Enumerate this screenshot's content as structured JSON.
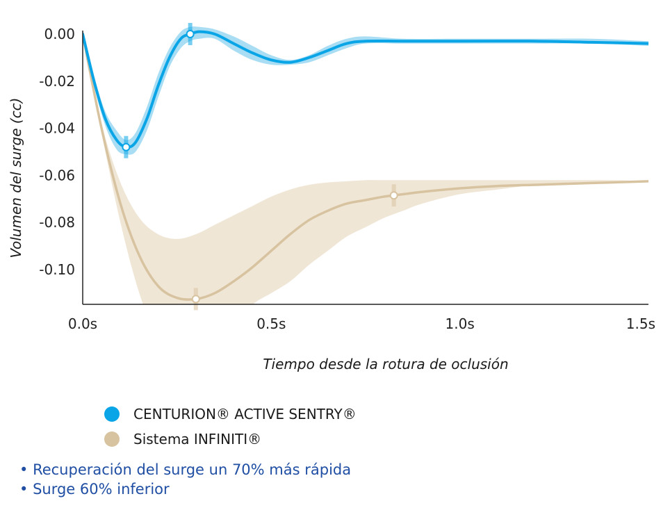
{
  "colors": {
    "centurion": "#0aa5e6",
    "centurion_band": "#a8ddf4",
    "infiniti": "#d8c3a0",
    "infiniti_band": "#f0e6d6",
    "axis": "#222222",
    "bullet_text": "#1f4ea3"
  },
  "chart_data": {
    "type": "line",
    "xlabel": "Tiempo desde la rotura de oclusión",
    "ylabel": "Volumen del surge (cc)",
    "xlim": [
      0,
      1.5
    ],
    "ylim": [
      -0.115,
      0.002
    ],
    "x_ticks": [
      "0.0s",
      "0.5s",
      "1.0s",
      "1.5s"
    ],
    "y_ticks": [
      "0.00",
      "-0.02",
      "-0.04",
      "-0.06",
      "-0.08",
      "-0.10"
    ],
    "series": [
      {
        "name": "CENTURION® ACTIVE SENTRY®",
        "x": [
          0,
          0.03,
          0.06,
          0.09,
          0.115,
          0.14,
          0.17,
          0.2,
          0.23,
          0.26,
          0.285,
          0.31,
          0.35,
          0.4,
          0.45,
          0.5,
          0.55,
          0.6,
          0.65,
          0.7,
          0.75,
          0.85,
          1.0,
          1.2,
          1.35,
          1.5
        ],
        "y": [
          0,
          -0.02,
          -0.036,
          -0.045,
          -0.048,
          -0.046,
          -0.036,
          -0.022,
          -0.01,
          -0.002,
          0.0,
          0.001,
          0.0,
          -0.004,
          -0.008,
          -0.011,
          -0.012,
          -0.01,
          -0.007,
          -0.004,
          -0.003,
          -0.003,
          -0.003,
          -0.003,
          -0.0035,
          -0.004
        ],
        "upper": [
          0,
          -0.018,
          -0.033,
          -0.041,
          -0.045,
          -0.042,
          -0.031,
          -0.017,
          -0.006,
          0.001,
          0.003,
          0.003,
          0.002,
          -0.001,
          -0.005,
          -0.009,
          -0.011,
          -0.009,
          -0.005,
          -0.002,
          -0.001,
          -0.002,
          -0.002,
          -0.002,
          -0.002,
          -0.003
        ],
        "lower": [
          0,
          -0.022,
          -0.039,
          -0.049,
          -0.051,
          -0.05,
          -0.041,
          -0.027,
          -0.014,
          -0.006,
          -0.003,
          -0.002,
          -0.002,
          -0.007,
          -0.011,
          -0.013,
          -0.013,
          -0.012,
          -0.009,
          -0.006,
          -0.004,
          -0.004,
          -0.004,
          -0.004,
          -0.004,
          -0.005
        ],
        "markers": [
          {
            "x": 0.115,
            "y": -0.048
          },
          {
            "x": 0.285,
            "y": 0.0
          }
        ]
      },
      {
        "name": "Sistema INFINITI®",
        "x": [
          0,
          0.05,
          0.1,
          0.15,
          0.2,
          0.25,
          0.3,
          0.35,
          0.4,
          0.45,
          0.5,
          0.55,
          0.6,
          0.65,
          0.7,
          0.75,
          0.8,
          0.85,
          0.9,
          1.0,
          1.1,
          1.2,
          1.3,
          1.4,
          1.5
        ],
        "y": [
          0,
          -0.04,
          -0.072,
          -0.094,
          -0.107,
          -0.112,
          -0.1125,
          -0.11,
          -0.105,
          -0.099,
          -0.092,
          -0.085,
          -0.079,
          -0.075,
          -0.072,
          -0.0705,
          -0.069,
          -0.068,
          -0.067,
          -0.0655,
          -0.0645,
          -0.064,
          -0.0635,
          -0.063,
          -0.0625
        ],
        "upper": [
          0,
          -0.038,
          -0.063,
          -0.078,
          -0.085,
          -0.087,
          -0.085,
          -0.081,
          -0.077,
          -0.073,
          -0.069,
          -0.066,
          -0.064,
          -0.063,
          -0.0625,
          -0.062,
          -0.062,
          -0.062,
          -0.062,
          -0.062,
          -0.062,
          -0.062,
          -0.062,
          -0.062,
          -0.0625
        ],
        "lower": [
          0,
          -0.042,
          -0.08,
          -0.11,
          -0.13,
          -0.14,
          -0.14,
          -0.135,
          -0.125,
          -0.115,
          -0.11,
          -0.105,
          -0.098,
          -0.092,
          -0.086,
          -0.082,
          -0.078,
          -0.075,
          -0.072,
          -0.068,
          -0.066,
          -0.064,
          -0.063,
          -0.063,
          -0.0625
        ],
        "markers": [
          {
            "x": 0.3,
            "y": -0.1125
          },
          {
            "x": 0.825,
            "y": -0.0685
          }
        ]
      }
    ],
    "legend_position": "bottom-left",
    "grid": false
  },
  "legend": [
    {
      "label": "CENTURION® ACTIVE SENTRY®"
    },
    {
      "label": "Sistema INFINITI®"
    }
  ],
  "bullets": [
    "Recuperación del surge un 70% más rápida",
    "Surge 60% inferior"
  ]
}
